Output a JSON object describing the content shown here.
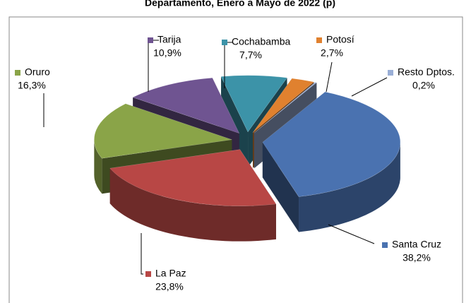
{
  "chart_data": {
    "type": "pie3d",
    "title": "Departamento, Enero a Mayo de 2022 (p)",
    "categories": [
      "Santa Cruz",
      "La Paz",
      "Oruro",
      "Tarija",
      "Cochabamba",
      "Potosí",
      "Resto Dptos."
    ],
    "values": [
      38.2,
      23.8,
      16.3,
      10.9,
      7.7,
      2.7,
      0.2
    ],
    "value_labels": [
      "38,2%",
      "23,8%",
      "16,3%",
      "10,9%",
      "7,7%",
      "2,7%",
      "0,2%"
    ],
    "colors": [
      "#4a72b0",
      "#b84745",
      "#8aa448",
      "#6f5491",
      "#3c93a8",
      "#e0812f",
      "#9aaed6"
    ]
  }
}
